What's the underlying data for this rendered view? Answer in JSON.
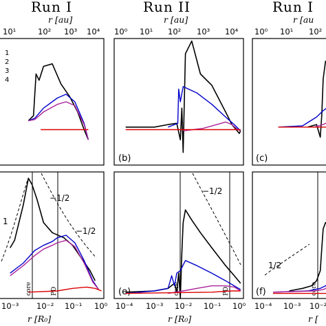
{
  "runs": [
    {
      "title": "Run I"
    },
    {
      "title": "Run II"
    },
    {
      "title": "Run I"
    }
  ],
  "top_axis": {
    "label": "r [au]",
    "label_cropped": "r [au",
    "ticks": [
      "10⁰",
      "10¹",
      "10²",
      "10³",
      "10⁴"
    ]
  },
  "bottom_axis": {
    "label": "r [R₀]",
    "label_cropped": "r [",
    "ticks": [
      "10⁻⁴",
      "10⁻³",
      "10⁻²",
      "10⁻¹",
      "10⁰"
    ]
  },
  "panel_labels": [
    "(b)",
    "(c)",
    "(e)",
    "(f)"
  ],
  "legend_numbers": [
    "1",
    "2",
    "3",
    "4"
  ],
  "annotations": {
    "slope_a": "−1/2",
    "slope_b": "−1/2",
    "slope_c": "−1/2",
    "slope_d": "1/2",
    "one": "1",
    "core": "core",
    "pd": "PD"
  },
  "colors": {
    "black": "#000000",
    "blue": "#0000cc",
    "magenta": "#aa2299",
    "red": "#dd0000"
  },
  "chart_data": {
    "type": "line",
    "x_scale": "log",
    "series_colors": [
      "#000000",
      "#0000cc",
      "#aa2299",
      "#dd0000"
    ],
    "panels": [
      {
        "id": "a",
        "series": [
          {
            "x": [
              0.003,
              0.0045,
              0.0055,
              0.007,
              0.01,
              0.02,
              0.04,
              0.08,
              0.15,
              0.25,
              0.35
            ],
            "y": [
              0.35,
              0.39,
              0.72,
              0.67,
              0.78,
              0.8,
              0.64,
              0.54,
              0.42,
              0.28,
              0.2
            ]
          },
          {
            "x": [
              0.003,
              0.005,
              0.01,
              0.03,
              0.06,
              0.12,
              0.25,
              0.35
            ],
            "y": [
              0.35,
              0.37,
              0.45,
              0.53,
              0.56,
              0.5,
              0.33,
              0.2
            ]
          },
          {
            "x": [
              0.003,
              0.005,
              0.01,
              0.03,
              0.06,
              0.12,
              0.25,
              0.35
            ],
            "y": [
              0.35,
              0.36,
              0.42,
              0.48,
              0.5,
              0.47,
              0.32,
              0.2
            ]
          },
          {
            "x": [
              0.008,
              0.35
            ],
            "y": [
              0.28,
              0.28
            ]
          }
        ]
      },
      {
        "id": "b",
        "series": [
          {
            "x": [
              0.0001,
              0.001,
              0.003,
              0.006,
              0.008,
              0.009,
              0.01,
              0.012,
              0.02,
              0.04,
              0.1,
              0.3,
              0.5,
              0.7,
              0.9,
              1.0
            ],
            "y": [
              0.3,
              0.3,
              0.32,
              0.33,
              0.2,
              0.45,
              0.1,
              0.88,
              0.98,
              0.72,
              0.63,
              0.42,
              0.32,
              0.28,
              0.25,
              0.27
            ]
          },
          {
            "x": [
              0.003,
              0.005,
              0.0065,
              0.007,
              0.008,
              0.01,
              0.03,
              0.1,
              0.3,
              0.6,
              0.9,
              1.0
            ],
            "y": [
              0.3,
              0.32,
              0.33,
              0.6,
              0.5,
              0.62,
              0.57,
              0.48,
              0.38,
              0.32,
              0.28,
              0.27
            ]
          },
          {
            "x": [
              0.01,
              0.05,
              0.15,
              0.3,
              0.5,
              0.8,
              1.0
            ],
            "y": [
              0.27,
              0.29,
              0.32,
              0.34,
              0.32,
              0.28,
              0.27
            ]
          },
          {
            "x": [
              0.0001,
              1.0
            ],
            "y": [
              0.28,
              0.28
            ]
          }
        ]
      },
      {
        "id": "c",
        "series": [
          {
            "x": [
              0.003,
              0.006,
              0.008,
              0.009,
              0.01,
              0.012,
              0.015
            ],
            "y": [
              0.3,
              0.32,
              0.22,
              0.4,
              0.68,
              0.82,
              0.8
            ]
          },
          {
            "x": [
              0.0003,
              0.002,
              0.006,
              0.01,
              0.015
            ],
            "y": [
              0.3,
              0.31,
              0.38,
              0.43,
              0.46
            ]
          },
          {
            "x": [
              0.005,
              0.01,
              0.015
            ],
            "y": [
              0.3,
              0.32,
              0.34
            ]
          },
          {
            "x": [
              0.0003,
              0.015
            ],
            "y": [
              0.3,
              0.3
            ]
          }
        ]
      },
      {
        "id": "d",
        "series": [
          {
            "x": [
              0.0007,
              0.001,
              0.002,
              0.003,
              0.004,
              0.006,
              0.01,
              0.02,
              0.05,
              0.1,
              0.2,
              0.4,
              0.6
            ],
            "y": [
              0.4,
              0.46,
              0.74,
              0.95,
              0.9,
              0.78,
              0.6,
              0.52,
              0.48,
              0.42,
              0.32,
              0.22,
              0.14
            ]
          },
          {
            "x": [
              0.0007,
              0.002,
              0.005,
              0.01,
              0.02,
              0.03,
              0.06,
              0.12,
              0.25,
              0.5,
              0.8
            ],
            "y": [
              0.2,
              0.28,
              0.38,
              0.42,
              0.45,
              0.48,
              0.5,
              0.44,
              0.3,
              0.14,
              0.07
            ]
          },
          {
            "x": [
              0.0007,
              0.002,
              0.005,
              0.01,
              0.02,
              0.03,
              0.06,
              0.12,
              0.25,
              0.5,
              0.8
            ],
            "y": [
              0.18,
              0.26,
              0.34,
              0.39,
              0.42,
              0.44,
              0.46,
              0.41,
              0.28,
              0.13,
              0.07
            ]
          },
          {
            "x": [
              0.003,
              0.03,
              0.1,
              0.3,
              0.6,
              1.0
            ],
            "y": [
              0.05,
              0.06,
              0.08,
              0.09,
              0.08,
              0.06
            ]
          }
        ]
      },
      {
        "id": "e",
        "series": [
          {
            "x": [
              0.0001,
              0.001,
              0.003,
              0.005,
              0.006,
              0.007,
              0.008,
              0.009,
              0.01,
              0.012,
              0.02,
              0.04,
              0.1,
              0.3,
              0.6,
              1.0
            ],
            "y": [
              0.05,
              0.06,
              0.08,
              0.12,
              0.05,
              0.2,
              -0.06,
              0.36,
              0.6,
              0.7,
              0.62,
              0.52,
              0.4,
              0.26,
              0.18,
              0.12
            ]
          },
          {
            "x": [
              0.0001,
              0.001,
              0.003,
              0.004,
              0.005,
              0.006,
              0.008,
              0.012,
              0.03,
              0.1,
              0.3,
              0.6,
              1.0
            ],
            "y": [
              0.04,
              0.06,
              0.08,
              0.18,
              0.1,
              0.2,
              0.22,
              0.3,
              0.26,
              0.2,
              0.14,
              0.1,
              0.07
            ]
          },
          {
            "x": [
              0.003,
              0.01,
              0.03,
              0.1,
              0.3,
              0.6,
              1.0
            ],
            "y": [
              0.04,
              0.06,
              0.08,
              0.1,
              0.1,
              0.09,
              0.06
            ]
          },
          {
            "x": [
              0.0001,
              0.1,
              0.5,
              1.0
            ],
            "y": [
              0.04,
              0.05,
              0.06,
              0.06
            ]
          }
        ]
      },
      {
        "id": "f",
        "series": [
          {
            "x": [
              0.0007,
              0.002,
              0.004,
              0.006,
              0.008,
              0.009,
              0.01,
              0.012,
              0.015
            ],
            "y": [
              0.06,
              0.08,
              0.1,
              0.14,
              0.22,
              0.4,
              0.55,
              0.6,
              0.58
            ]
          },
          {
            "x": [
              0.0002,
              0.003,
              0.008,
              0.012,
              0.015
            ],
            "y": [
              0.05,
              0.06,
              0.08,
              0.1,
              0.12
            ]
          },
          {
            "x": [
              0.0002,
              0.005,
              0.01,
              0.015
            ],
            "y": [
              0.05,
              0.06,
              0.07,
              0.09
            ]
          },
          {
            "x": [
              0.0002,
              0.015
            ],
            "y": [
              0.04,
              0.04
            ]
          }
        ]
      }
    ]
  }
}
